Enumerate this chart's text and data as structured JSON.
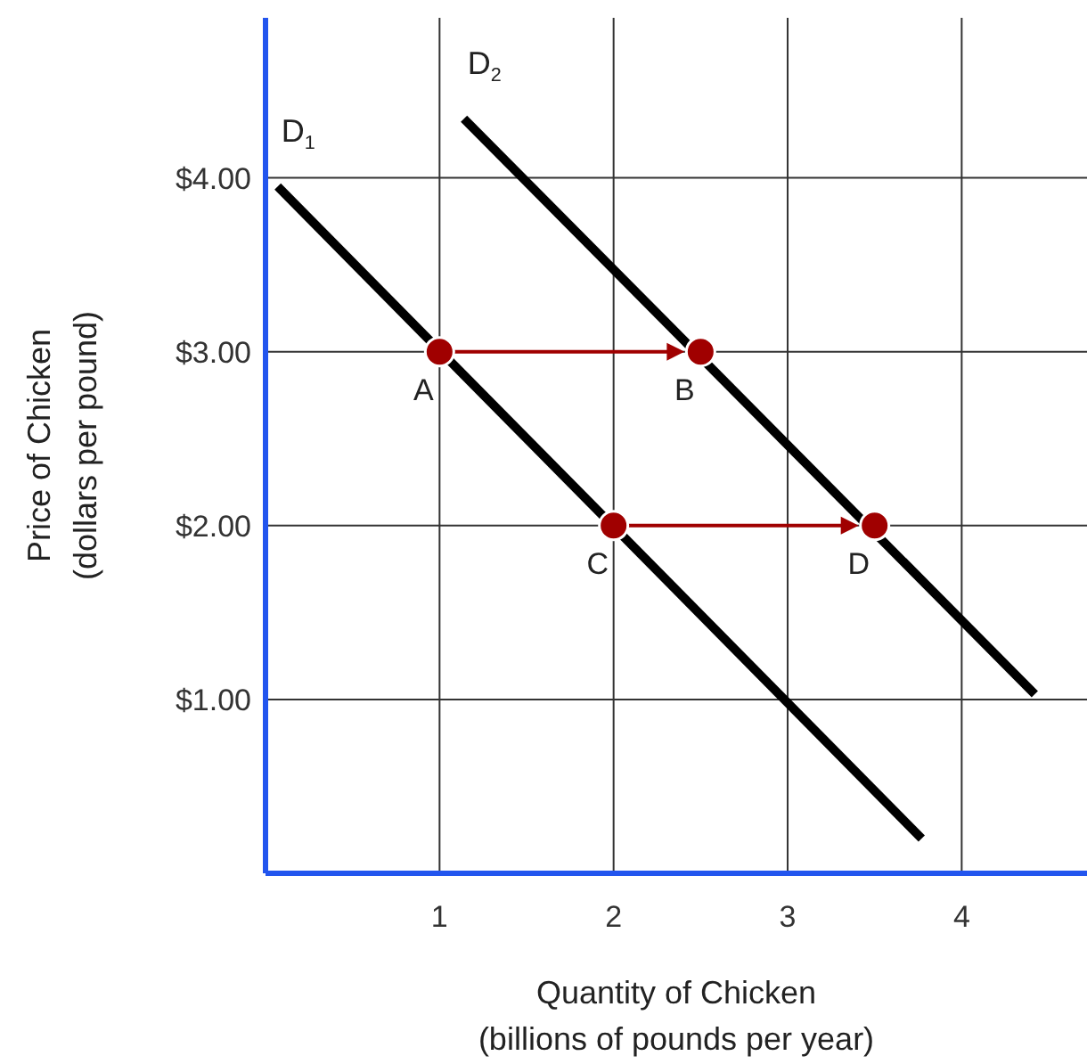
{
  "chart_data": {
    "type": "line",
    "xlabel": "Quantity of Chicken\n(billions of pounds per year)",
    "ylabel": "Price of Chicken\n(dollars per pound)",
    "xlim": [
      0,
      4.72
    ],
    "ylim": [
      0,
      4.92
    ],
    "xticks": [
      1,
      2,
      3,
      4
    ],
    "yticks": [
      {
        "value": 1,
        "label": "$1.00"
      },
      {
        "value": 2,
        "label": "$2.00"
      },
      {
        "value": 3,
        "label": "$3.00"
      },
      {
        "value": 4,
        "label": "$4.00"
      }
    ],
    "grid": true,
    "series": [
      {
        "name": "D$_{1}$",
        "color": "#000000",
        "x": [
          0.07,
          3.77
        ],
        "values": [
          3.95,
          0.2
        ]
      },
      {
        "name": "D$_{2}$",
        "color": "#000000",
        "x": [
          1.14,
          4.42
        ],
        "values": [
          4.34,
          1.03
        ]
      },
      {
        "type": "scatter",
        "color": "#a00000",
        "marker": "circle",
        "x": [
          1,
          2.5,
          2,
          3.5
        ],
        "values": [
          3,
          3,
          2,
          2
        ]
      }
    ],
    "annotations": [
      {
        "text": "A",
        "x": 1,
        "y": 3
      },
      {
        "text": "B",
        "x": 2.5,
        "y": 3
      },
      {
        "text": "C",
        "x": 2,
        "y": 2
      },
      {
        "text": "D",
        "x": 3.5,
        "y": 2
      }
    ]
  }
}
